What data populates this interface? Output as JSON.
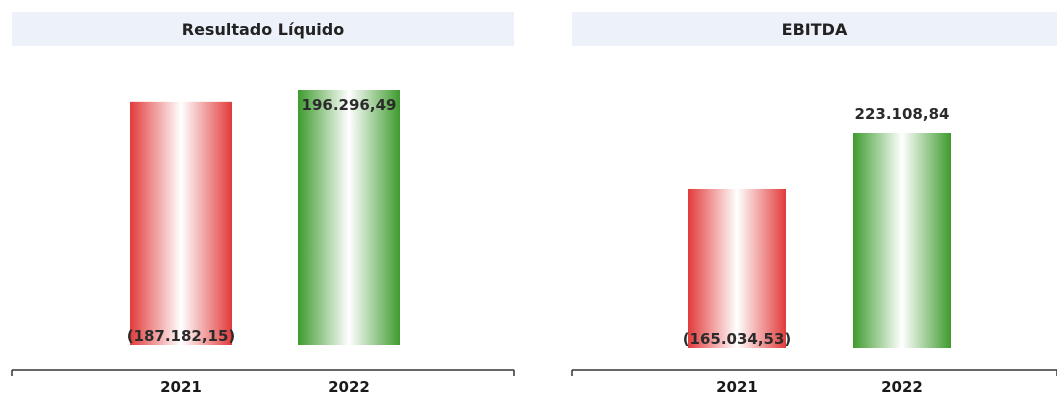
{
  "chart_data": [
    {
      "type": "bar",
      "subtype": "waterfall",
      "title": "Resultado Líquido",
      "categories": [
        "2021",
        "2022"
      ],
      "values": [
        -187182.15,
        196296.49
      ],
      "labels": [
        "(187.182,15)",
        "196.296,49"
      ],
      "colors": {
        "negative": "#e23b3b",
        "positive": "#3e9b2e"
      },
      "grid": false,
      "legend": "none"
    },
    {
      "type": "bar",
      "subtype": "waterfall",
      "title": "EBITDA",
      "categories": [
        "2021",
        "2022"
      ],
      "values": [
        -165034.53,
        223108.84
      ],
      "labels": [
        "(165.034,53)",
        "223.108,84"
      ],
      "colors": {
        "negative": "#e23b3b",
        "positive": "#3e9b2e"
      },
      "grid": false,
      "legend": "none"
    }
  ]
}
